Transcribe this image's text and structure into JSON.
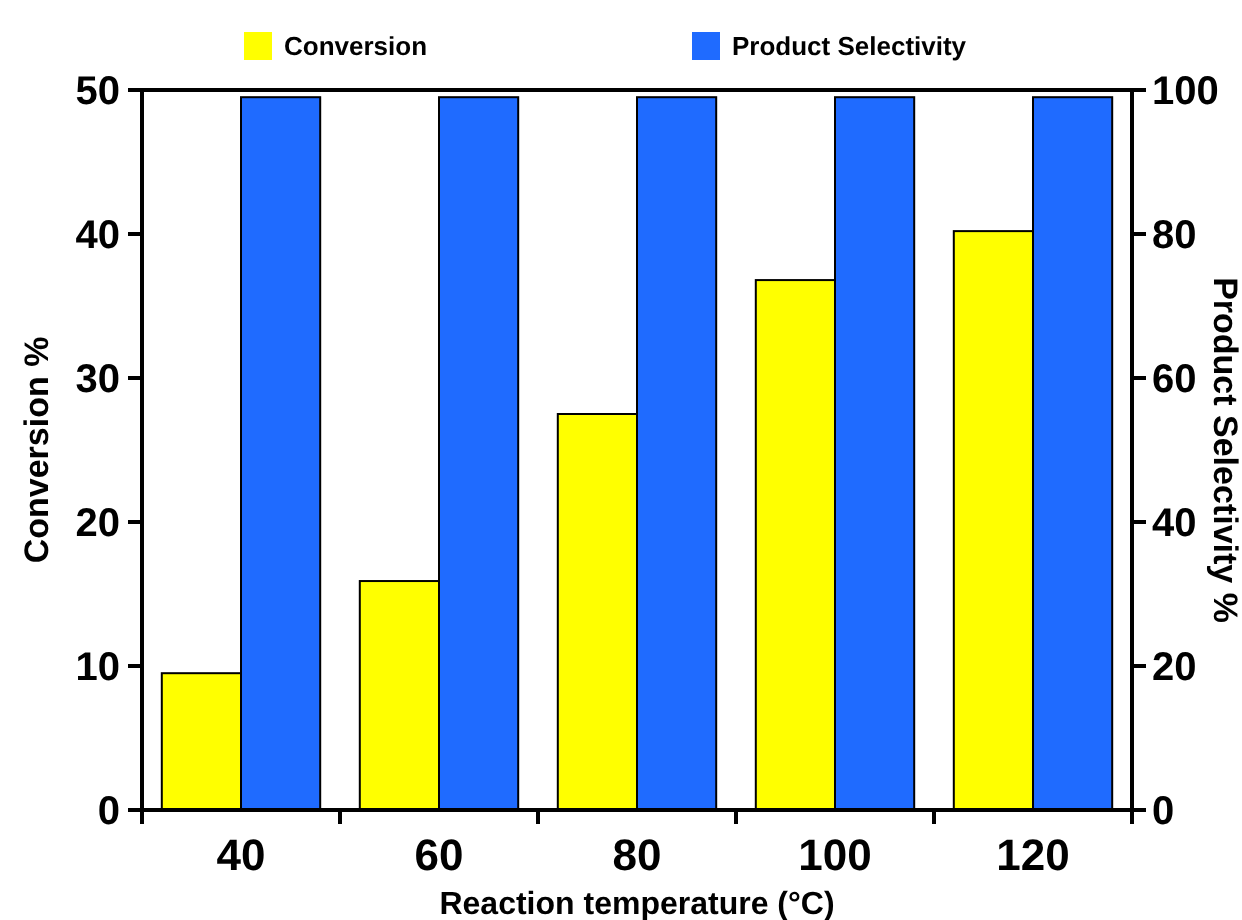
{
  "chart_data": {
    "type": "bar",
    "xlabel": "Reaction temperature (°C)",
    "ylabel": "Conversion %",
    "y2label": "Product Selectivity %",
    "categories": [
      "40",
      "60",
      "80",
      "100",
      "120"
    ],
    "series": [
      {
        "name": "Conversion",
        "color": "#ffff00",
        "values": [
          9.5,
          15.9,
          27.5,
          36.8,
          40.2
        ]
      },
      {
        "name": "Product Selectivity",
        "color": "#1f6bff",
        "values": [
          99,
          99,
          99,
          99,
          99
        ],
        "axis": "y2"
      }
    ],
    "ylim": [
      0,
      50
    ],
    "yticks": [
      0,
      10,
      20,
      30,
      40,
      50
    ],
    "y2lim": [
      0,
      100
    ],
    "y2ticks": [
      0,
      20,
      40,
      60,
      80,
      100
    ],
    "legend": "top",
    "grid": false
  }
}
